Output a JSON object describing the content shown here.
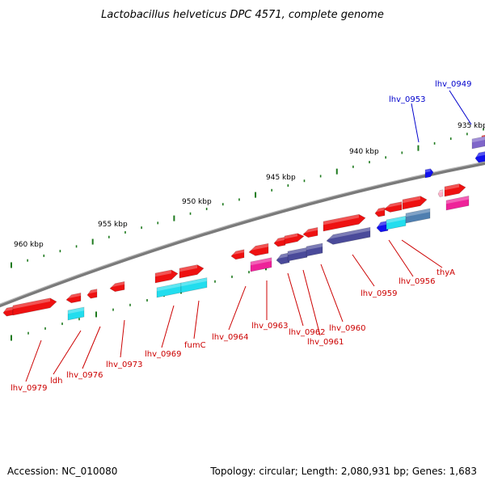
{
  "title": "Lactobacillus helveticus DPC 4571, complete genome",
  "footer": {
    "accession": "Accession: NC_010080",
    "summary": "Topology: circular; Length: 2,080,931 bp; Genes: 1,683"
  },
  "colors": {
    "backbone": "#8c8c8c",
    "tick": "#1e7a1e",
    "label_red": "#cc0000",
    "label_blue": "#0000cc",
    "gene_red": "#ee1111",
    "gene_cyan": "#22ddee",
    "gene_magenta": "#ee2299",
    "gene_purple": "#4a4a9a",
    "gene_blue": "#1111ee",
    "gene_steel": "#4f7fb0"
  },
  "scale_labels": [
    {
      "kbp": 935,
      "label": "935 kbp"
    },
    {
      "kbp": 940,
      "label": "940 kbp"
    },
    {
      "kbp": 945,
      "label": "945 kbp"
    },
    {
      "kbp": 950,
      "label": "950 kbp"
    },
    {
      "kbp": 955,
      "label": "955 kbp"
    },
    {
      "kbp": 960,
      "label": "960 kbp"
    }
  ],
  "gene_labels": [
    {
      "name": "lhv_0949",
      "color": "blue"
    },
    {
      "name": "lhv_0953",
      "color": "blue"
    },
    {
      "name": "thyA",
      "color": "red"
    },
    {
      "name": "lhv_0956",
      "color": "red"
    },
    {
      "name": "lhv_0959",
      "color": "red"
    },
    {
      "name": "lhv_0960",
      "color": "red"
    },
    {
      "name": "lhv_0961",
      "color": "red"
    },
    {
      "name": "lhv_0962",
      "color": "red"
    },
    {
      "name": "lhv_0963",
      "color": "red"
    },
    {
      "name": "lhv_0964",
      "color": "red"
    },
    {
      "name": "fumC",
      "color": "red"
    },
    {
      "name": "lhv_0969",
      "color": "red"
    },
    {
      "name": "lhv_0973",
      "color": "red"
    },
    {
      "name": "lhv_0976",
      "color": "red"
    },
    {
      "name": "ldh",
      "color": "red"
    },
    {
      "name": "lhv_0979",
      "color": "red"
    }
  ]
}
